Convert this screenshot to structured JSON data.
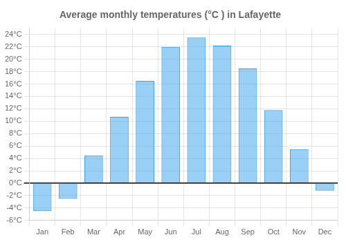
{
  "chart_data": {
    "type": "bar",
    "title": "Average monthly temperatures (°C ) in Lafayette",
    "categories": [
      "Jan",
      "Feb",
      "Mar",
      "Apr",
      "May",
      "Jun",
      "Jul",
      "Aug",
      "Sep",
      "Oct",
      "Nov",
      "Dec"
    ],
    "values": [
      -4.5,
      -2.5,
      4.5,
      10.7,
      16.5,
      22.0,
      23.5,
      22.2,
      18.5,
      11.8,
      5.5,
      -1.2
    ],
    "ylim": [
      -6,
      25
    ],
    "yticks": [
      {
        "value": -6,
        "label": "-6°C"
      },
      {
        "value": -4,
        "label": "-4°C"
      },
      {
        "value": -2,
        "label": "-2°C"
      },
      {
        "value": 0,
        "label": "0°C"
      },
      {
        "value": 2,
        "label": "2°C"
      },
      {
        "value": 4,
        "label": "4°C"
      },
      {
        "value": 6,
        "label": "6°C"
      },
      {
        "value": 8,
        "label": "8°C"
      },
      {
        "value": 10,
        "label": "10°C"
      },
      {
        "value": 12,
        "label": "12°C"
      },
      {
        "value": 14,
        "label": "14°C"
      },
      {
        "value": 16,
        "label": "16°C"
      },
      {
        "value": 18,
        "label": "18°C"
      },
      {
        "value": 20,
        "label": "20°C"
      },
      {
        "value": 22,
        "label": "22°C"
      },
      {
        "value": 24,
        "label": "24°C"
      }
    ],
    "grid": true
  }
}
